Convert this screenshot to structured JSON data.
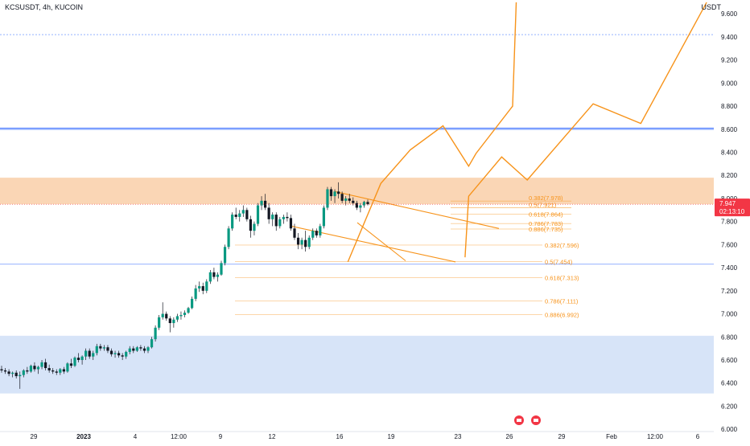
{
  "header": {
    "symbol": "KCSUSDT, 4h, KUCOIN",
    "currency": "USDT"
  },
  "price_badge": {
    "price": "7.947",
    "countdown": "02:13:10",
    "color": "#f23645"
  },
  "colors": {
    "up": "#089981",
    "down": "#131722",
    "wick": "#131722",
    "orange": "#f7931a",
    "supply_zone": "#f8c89c",
    "demand_zone": "#c9dbf5",
    "blue_line": "#2962ff"
  },
  "chart_data": {
    "type": "candlestick",
    "title": "KCSUSDT, 4h, KUCOIN",
    "y_axis": {
      "ticks": [
        "9.600",
        "9.400",
        "9.200",
        "9.000",
        "8.800",
        "8.600",
        "8.400",
        "8.200",
        "8.000",
        "7.800",
        "7.600",
        "7.400",
        "7.200",
        "7.000",
        "6.800",
        "6.600",
        "6.400",
        "6.200",
        "6.000"
      ],
      "range": [
        5.98,
        9.72
      ]
    },
    "x_axis": {
      "ticks": [
        "29",
        "2023",
        "4",
        "12:00",
        "9",
        "12",
        "16",
        "19",
        "23",
        "26",
        "29",
        "Feb",
        "12:00",
        "6"
      ]
    },
    "zones": [
      {
        "name": "supply-zone",
        "from": 7.95,
        "to": 8.18
      },
      {
        "name": "demand-zone",
        "from": 6.31,
        "to": 6.81
      }
    ],
    "horizontal_lines": [
      9.42,
      8.61,
      8.6,
      7.43
    ],
    "fib_upper": [
      {
        "label": "0.382(7.978)",
        "value": 7.978
      },
      {
        "label": "0.5(7.921)",
        "value": 7.921
      },
      {
        "label": "0.618(7.864)",
        "value": 7.864
      },
      {
        "label": "0.786(7.783)",
        "value": 7.783
      },
      {
        "label": "0.886(7.735)",
        "value": 7.735
      }
    ],
    "fib_lower": [
      {
        "label": "0.382(7.596)",
        "value": 7.596
      },
      {
        "label": "0.5(7.454)",
        "value": 7.454
      },
      {
        "label": "0.618(7.313)",
        "value": 7.313
      },
      {
        "label": "0.786(7.111)",
        "value": 7.111
      },
      {
        "label": "0.886(6.992)",
        "value": 6.992
      }
    ],
    "candles": [
      [
        6.52,
        6.55,
        6.49,
        6.51
      ],
      [
        6.51,
        6.53,
        6.48,
        6.5
      ],
      [
        6.5,
        6.52,
        6.46,
        6.48
      ],
      [
        6.48,
        6.5,
        6.45,
        6.49
      ],
      [
        6.49,
        6.51,
        6.44,
        6.46
      ],
      [
        6.46,
        6.5,
        6.35,
        6.47
      ],
      [
        6.47,
        6.52,
        6.45,
        6.51
      ],
      [
        6.51,
        6.54,
        6.48,
        6.5
      ],
      [
        6.5,
        6.56,
        6.49,
        6.55
      ],
      [
        6.55,
        6.58,
        6.5,
        6.52
      ],
      [
        6.52,
        6.55,
        6.48,
        6.54
      ],
      [
        6.54,
        6.6,
        6.52,
        6.58
      ],
      [
        6.58,
        6.61,
        6.51,
        6.53
      ],
      [
        6.53,
        6.56,
        6.49,
        6.51
      ],
      [
        6.51,
        6.53,
        6.48,
        6.5
      ],
      [
        6.5,
        6.52,
        6.47,
        6.49
      ],
      [
        6.49,
        6.53,
        6.47,
        6.52
      ],
      [
        6.52,
        6.54,
        6.48,
        6.5
      ],
      [
        6.5,
        6.58,
        6.49,
        6.57
      ],
      [
        6.57,
        6.61,
        6.53,
        6.55
      ],
      [
        6.55,
        6.63,
        6.54,
        6.62
      ],
      [
        6.62,
        6.66,
        6.58,
        6.6
      ],
      [
        6.6,
        6.64,
        6.56,
        6.63
      ],
      [
        6.63,
        6.7,
        6.6,
        6.68
      ],
      [
        6.68,
        6.7,
        6.61,
        6.63
      ],
      [
        6.63,
        6.68,
        6.6,
        6.66
      ],
      [
        6.66,
        6.74,
        6.64,
        6.72
      ],
      [
        6.72,
        6.74,
        6.68,
        6.7
      ],
      [
        6.7,
        6.73,
        6.68,
        6.71
      ],
      [
        6.71,
        6.73,
        6.66,
        6.68
      ],
      [
        6.68,
        6.7,
        6.63,
        6.65
      ],
      [
        6.65,
        6.68,
        6.62,
        6.66
      ],
      [
        6.66,
        6.68,
        6.62,
        6.64
      ],
      [
        6.64,
        6.66,
        6.6,
        6.63
      ],
      [
        6.63,
        6.68,
        6.61,
        6.67
      ],
      [
        6.67,
        6.72,
        6.65,
        6.7
      ],
      [
        6.7,
        6.72,
        6.66,
        6.68
      ],
      [
        6.68,
        6.72,
        6.67,
        6.71
      ],
      [
        6.71,
        6.73,
        6.68,
        6.7
      ],
      [
        6.7,
        6.72,
        6.66,
        6.68
      ],
      [
        6.68,
        6.72,
        6.66,
        6.71
      ],
      [
        6.71,
        6.8,
        6.7,
        6.78
      ],
      [
        6.78,
        6.9,
        6.76,
        6.88
      ],
      [
        6.88,
        6.99,
        6.86,
        6.97
      ],
      [
        6.97,
        7.1,
        6.95,
        7.0
      ],
      [
        7.0,
        7.02,
        6.94,
        6.96
      ],
      [
        6.96,
        6.98,
        6.84,
        6.92
      ],
      [
        6.92,
        6.97,
        6.88,
        6.95
      ],
      [
        6.95,
        7.0,
        6.93,
        6.98
      ],
      [
        6.98,
        7.02,
        6.95,
        6.99
      ],
      [
        6.99,
        7.03,
        6.97,
        7.01
      ],
      [
        7.01,
        7.06,
        7.0,
        7.05
      ],
      [
        7.05,
        7.15,
        7.04,
        7.13
      ],
      [
        7.13,
        7.25,
        7.11,
        7.22
      ],
      [
        7.22,
        7.28,
        7.19,
        7.24
      ],
      [
        7.24,
        7.27,
        7.17,
        7.2
      ],
      [
        7.2,
        7.3,
        7.18,
        7.28
      ],
      [
        7.28,
        7.38,
        7.26,
        7.36
      ],
      [
        7.36,
        7.4,
        7.3,
        7.32
      ],
      [
        7.32,
        7.36,
        7.28,
        7.34
      ],
      [
        7.34,
        7.46,
        7.33,
        7.44
      ],
      [
        7.44,
        7.6,
        7.42,
        7.58
      ],
      [
        7.58,
        7.76,
        7.56,
        7.74
      ],
      [
        7.74,
        7.88,
        7.72,
        7.86
      ],
      [
        7.86,
        7.92,
        7.82,
        7.84
      ],
      [
        7.84,
        7.9,
        7.8,
        7.87
      ],
      [
        7.87,
        7.94,
        7.84,
        7.9
      ],
      [
        7.9,
        7.92,
        7.8,
        7.82
      ],
      [
        7.82,
        7.85,
        7.66,
        7.72
      ],
      [
        7.72,
        7.8,
        7.68,
        7.78
      ],
      [
        7.78,
        7.96,
        7.76,
        7.94
      ],
      [
        7.94,
        8.02,
        7.9,
        7.98
      ],
      [
        7.98,
        8.04,
        7.9,
        7.92
      ],
      [
        7.92,
        7.96,
        7.78,
        7.82
      ],
      [
        7.82,
        7.88,
        7.76,
        7.86
      ],
      [
        7.86,
        7.88,
        7.72,
        7.76
      ],
      [
        7.76,
        7.84,
        7.74,
        7.82
      ],
      [
        7.82,
        7.86,
        7.78,
        7.84
      ],
      [
        7.84,
        7.88,
        7.8,
        7.83
      ],
      [
        7.83,
        7.86,
        7.72,
        7.74
      ],
      [
        7.74,
        7.78,
        7.64,
        7.66
      ],
      [
        7.66,
        7.7,
        7.56,
        7.6
      ],
      [
        7.6,
        7.66,
        7.56,
        7.64
      ],
      [
        7.64,
        7.72,
        7.54,
        7.58
      ],
      [
        7.58,
        7.68,
        7.56,
        7.66
      ],
      [
        7.66,
        7.74,
        7.64,
        7.72
      ],
      [
        7.72,
        7.74,
        7.66,
        7.68
      ],
      [
        7.68,
        7.78,
        7.66,
        7.76
      ],
      [
        7.76,
        7.94,
        7.74,
        7.92
      ],
      [
        7.92,
        8.1,
        7.9,
        8.08
      ],
      [
        8.08,
        8.1,
        7.98,
        8.02
      ],
      [
        8.02,
        8.08,
        7.96,
        8.06
      ],
      [
        8.06,
        8.14,
        8.0,
        8.04
      ],
      [
        8.04,
        8.06,
        7.96,
        7.98
      ],
      [
        7.98,
        8.02,
        7.94,
        8.0
      ],
      [
        8.0,
        8.04,
        7.96,
        7.98
      ],
      [
        7.98,
        8.01,
        7.94,
        7.96
      ],
      [
        7.96,
        7.98,
        7.9,
        7.92
      ],
      [
        7.92,
        7.96,
        7.88,
        7.94
      ],
      [
        7.94,
        7.98,
        7.92,
        7.97
      ],
      [
        7.97,
        7.99,
        7.94,
        7.95
      ]
    ],
    "projections": [
      {
        "name": "projection-path-a",
        "points": [
          [
            127,
            7.49
          ],
          [
            128,
            8.02
          ],
          [
            137,
            8.36
          ],
          [
            144,
            8.16
          ],
          [
            162,
            8.82
          ],
          [
            175,
            8.65
          ],
          [
            193,
            9.7
          ]
        ]
      },
      {
        "name": "projection-path-b",
        "points": [
          [
            95,
            7.45
          ],
          [
            104,
            8.13
          ],
          [
            112,
            8.42
          ],
          [
            121,
            8.63
          ],
          [
            128,
            8.28
          ],
          [
            130,
            8.39
          ],
          [
            140,
            8.8
          ],
          [
            141,
            9.7
          ]
        ]
      }
    ]
  }
}
